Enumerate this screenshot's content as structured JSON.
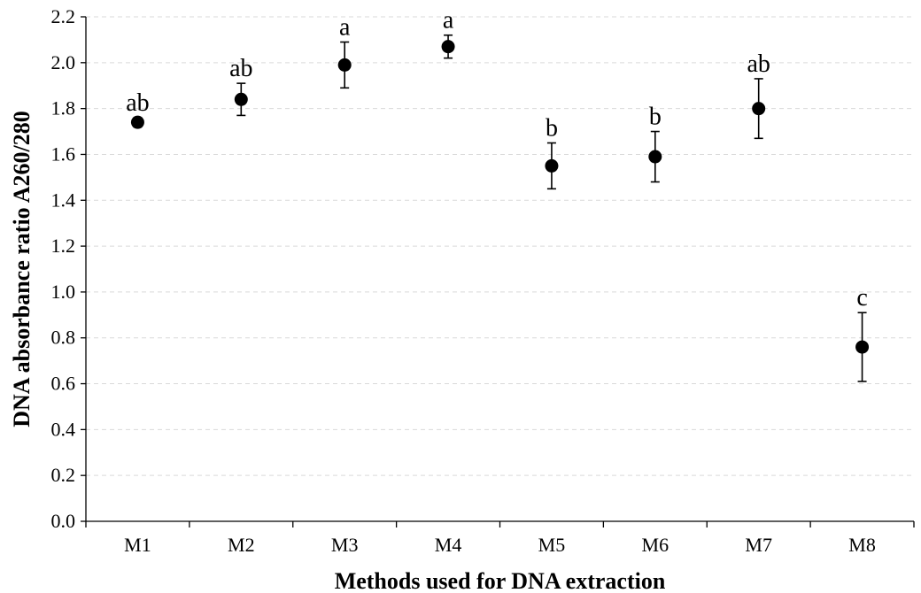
{
  "chart_data": {
    "type": "scatter",
    "title": "",
    "xlabel": "Methods used for DNA extraction",
    "ylabel": "DNA absorbance ratio A260/280",
    "categories": [
      "M1",
      "M2",
      "M3",
      "M4",
      "M5",
      "M6",
      "M7",
      "M8"
    ],
    "values": [
      1.74,
      1.84,
      1.99,
      2.07,
      1.55,
      1.59,
      1.8,
      0.76
    ],
    "error": [
      0.02,
      0.07,
      0.1,
      0.05,
      0.1,
      0.11,
      0.13,
      0.15
    ],
    "significance_labels": [
      "ab",
      "ab",
      "a",
      "a",
      "b",
      "b",
      "ab",
      "c"
    ],
    "ylim": [
      0.0,
      2.2
    ],
    "yticks": [
      "0.0",
      "0.2",
      "0.4",
      "0.6",
      "0.8",
      "1.0",
      "1.2",
      "1.4",
      "1.6",
      "1.8",
      "2.0",
      "2.2"
    ],
    "grid": true,
    "legend": "none",
    "colors": {
      "marker": "#000000",
      "grid": "#d9d9d9"
    }
  }
}
